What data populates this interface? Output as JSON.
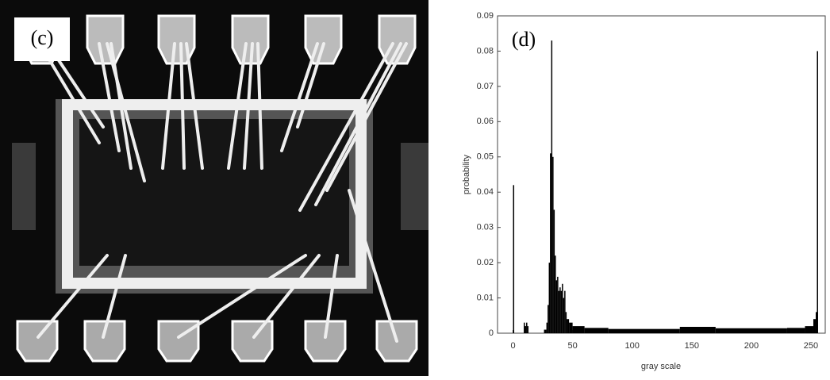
{
  "panel_c": {
    "label": "(c)"
  },
  "chart_data": {
    "type": "histogram",
    "annotation": "(d)",
    "xlabel": "gray scale",
    "ylabel": "probability",
    "color": "#000000",
    "bins": [
      0,
      1,
      9,
      10,
      11,
      12,
      13,
      26,
      28,
      29,
      30,
      31,
      32,
      33,
      34,
      35,
      36,
      37,
      38,
      39,
      40,
      41,
      42,
      43,
      44,
      45,
      47,
      50,
      60,
      80,
      140,
      170,
      230,
      245,
      252,
      254,
      255,
      256
    ],
    "values": [
      0.042,
      0,
      0.003,
      0.002,
      0.003,
      0.002,
      0,
      0.001,
      0.003,
      0.008,
      0.02,
      0.051,
      0.083,
      0.05,
      0.035,
      0.022,
      0.015,
      0.016,
      0.012,
      0.013,
      0.012,
      0.014,
      0.01,
      0.012,
      0.006,
      0.004,
      0.003,
      0.002,
      0.0015,
      0.0012,
      0.0018,
      0.0014,
      0.0015,
      0.002,
      0.004,
      0.006,
      0.08
    ],
    "xlim": [
      -13,
      262
    ],
    "ylim": [
      0,
      0.09
    ],
    "xticks": [
      0,
      50,
      100,
      150,
      200,
      250
    ],
    "yticks": [
      0,
      0.01,
      0.02,
      0.03,
      0.04,
      0.05,
      0.06,
      0.07,
      0.08,
      0.09
    ]
  }
}
